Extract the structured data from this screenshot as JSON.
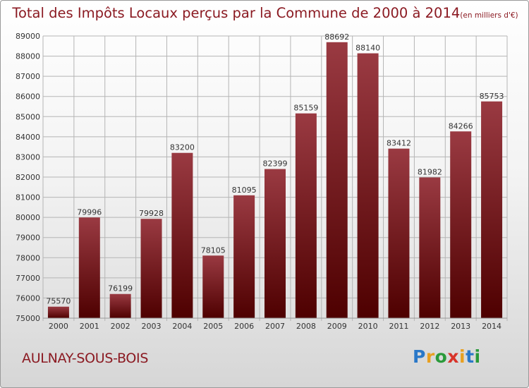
{
  "header": {
    "title": "Total des Impôts Locaux perçus par la Commune de 2000 à 2014",
    "unit": "(en milliers d'€)"
  },
  "footer": {
    "commune": "AULNAY-SOUS-BOIS",
    "logo_letters": [
      {
        "char": "P",
        "color": "#2a78c8"
      },
      {
        "char": "r",
        "color": "#e8a020"
      },
      {
        "char": "o",
        "color": "#2a9a3a"
      },
      {
        "char": "x",
        "color": "#d8342a"
      },
      {
        "char": "i",
        "color": "#e8a020"
      },
      {
        "char": "t",
        "color": "#2a78c8"
      },
      {
        "char": "i",
        "color": "#2a9a3a"
      }
    ]
  },
  "colors": {
    "bar_top": "#9a3a42",
    "bar_bottom": "#4e0000",
    "grid": "#b5b5b5"
  },
  "chart_data": {
    "type": "bar",
    "title": "Total des Impôts Locaux perçus par la Commune de 2000 à 2014",
    "xlabel": "",
    "ylabel": "",
    "categories": [
      "2000",
      "2001",
      "2002",
      "2003",
      "2004",
      "2005",
      "2006",
      "2007",
      "2008",
      "2009",
      "2010",
      "2011",
      "2012",
      "2013",
      "2014"
    ],
    "values": [
      75570,
      79996,
      76199,
      79928,
      83200,
      78105,
      81095,
      82399,
      85159,
      88692,
      88140,
      83412,
      81982,
      84266,
      85753
    ],
    "ylim": [
      75000,
      89000
    ],
    "yticks": [
      75000,
      76000,
      77000,
      78000,
      79000,
      80000,
      81000,
      82000,
      83000,
      84000,
      85000,
      86000,
      87000,
      88000,
      89000
    ],
    "grid": true
  }
}
